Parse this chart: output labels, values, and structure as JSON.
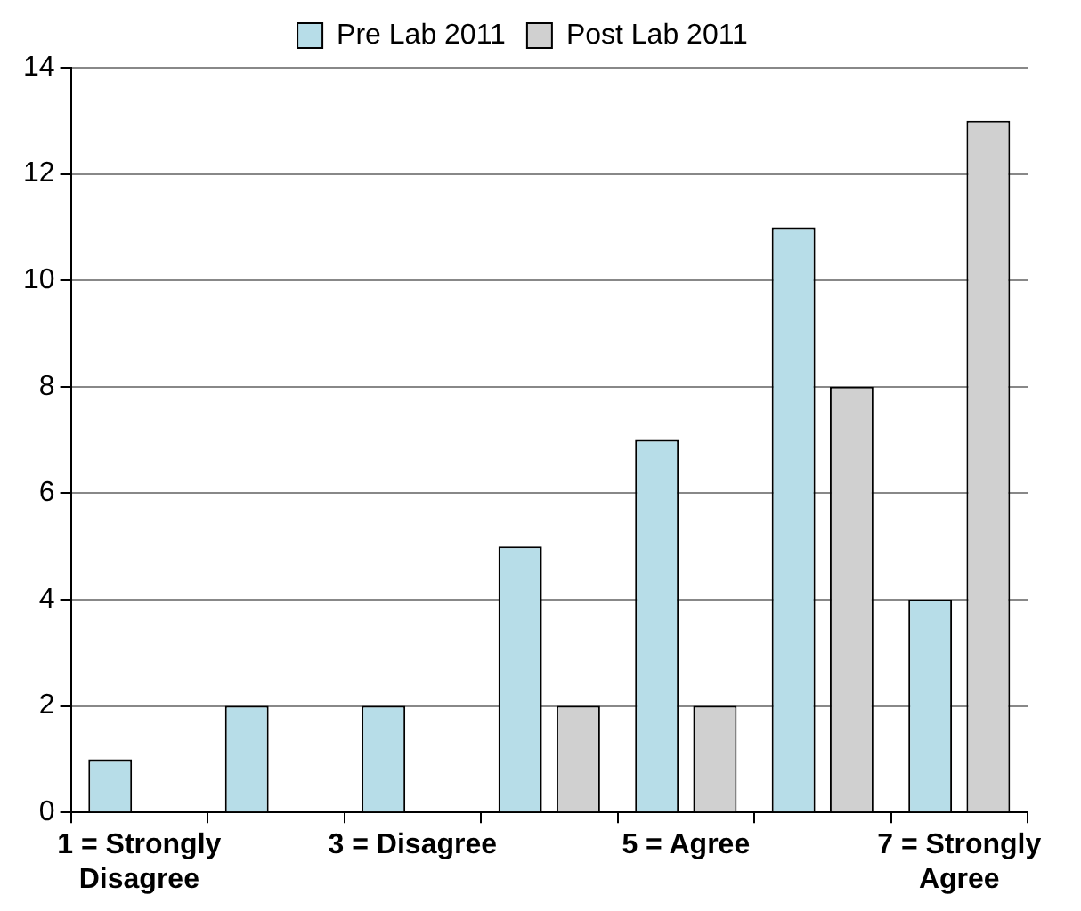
{
  "chart_data": {
    "type": "bar",
    "categories": [
      "1 = Strongly Disagree",
      null,
      "3 = Disagree",
      null,
      "5 = Agree",
      null,
      "7 = Strongly Agree"
    ],
    "series": [
      {
        "name": "Pre Lab 2011",
        "color": "#b7dde8",
        "values": [
          1,
          2,
          2,
          5,
          7,
          11,
          4
        ]
      },
      {
        "name": "Post Lab 2011",
        "color": "#d0d0d0",
        "values": [
          0,
          0,
          0,
          2,
          2,
          8,
          13
        ]
      }
    ],
    "ylim": [
      0,
      14
    ],
    "yticks": [
      0,
      2,
      4,
      6,
      8,
      10,
      12,
      14
    ],
    "grid": "y",
    "legend": "top"
  }
}
